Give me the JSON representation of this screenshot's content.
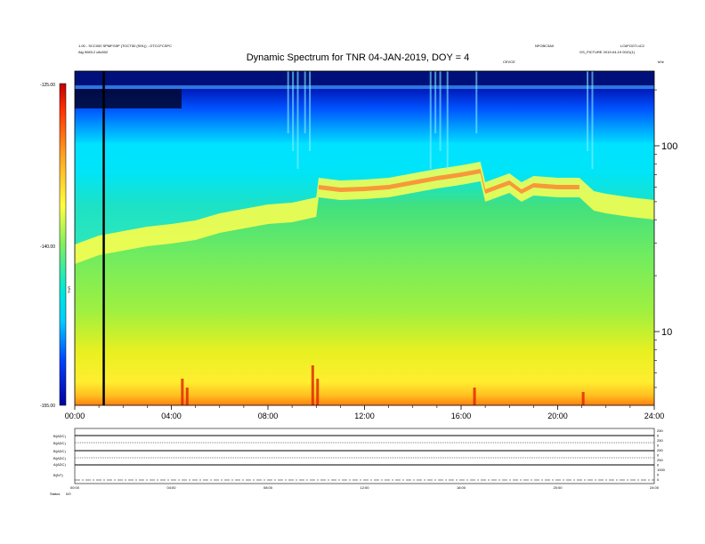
{
  "header": {
    "left_line1": "1.00 - SCC000 SPMFG5P (TOCT50 (S91)) - OTCCFCSPC",
    "left_line2": "Alg 9083.2 c8c502",
    "right_a": "NFOBC3A0",
    "right_b": "LC6FOOT-nC2",
    "right_c": "GS_PICTURE 2019-04-19 0021(1)",
    "right_small": "CEVCE",
    "right_unit": "kHz"
  },
  "chart_data": {
    "type": "heatmap",
    "title": "Dynamic Spectrum for TNR 04-JAN-2019, DOY = 4",
    "x_ticks": [
      "00:00",
      "04:00",
      "08:00",
      "12:00",
      "16:00",
      "20:00",
      "24:00"
    ],
    "x_range_hours": [
      0,
      24
    ],
    "y_scale": "log",
    "y_range_khz": [
      4,
      400
    ],
    "y_ticks": [
      "10",
      "100"
    ],
    "colorbar": {
      "ticks": [
        "-125.00",
        "-140.00",
        "-155.00"
      ],
      "range": [
        -155,
        -125
      ],
      "label": "TNR",
      "colors": [
        "#0000a0",
        "#0044ff",
        "#00ccff",
        "#00e8d8",
        "#40e0a0",
        "#80ee60",
        "#e0f020",
        "#ffff40",
        "#ffa020",
        "#ff2000",
        "#c00000"
      ]
    },
    "vertical_marker_hour": 1.2
  },
  "bottom_panel": {
    "labels": [
      "B(ADC)",
      "B(ADC)",
      "B(ADC)",
      "B(ADC)",
      "A(ADC)",
      "B(NT)"
    ],
    "right_ticks": [
      "250",
      "0",
      "250",
      "0",
      "250",
      "0",
      "250",
      "0",
      "1000",
      "0",
      "0"
    ],
    "x_ticks": [
      "00:00",
      "04:00",
      "08:00",
      "12:00",
      "16:00",
      "20:00",
      "24:00"
    ],
    "status_label": "Status",
    "status_value": "0/0"
  }
}
